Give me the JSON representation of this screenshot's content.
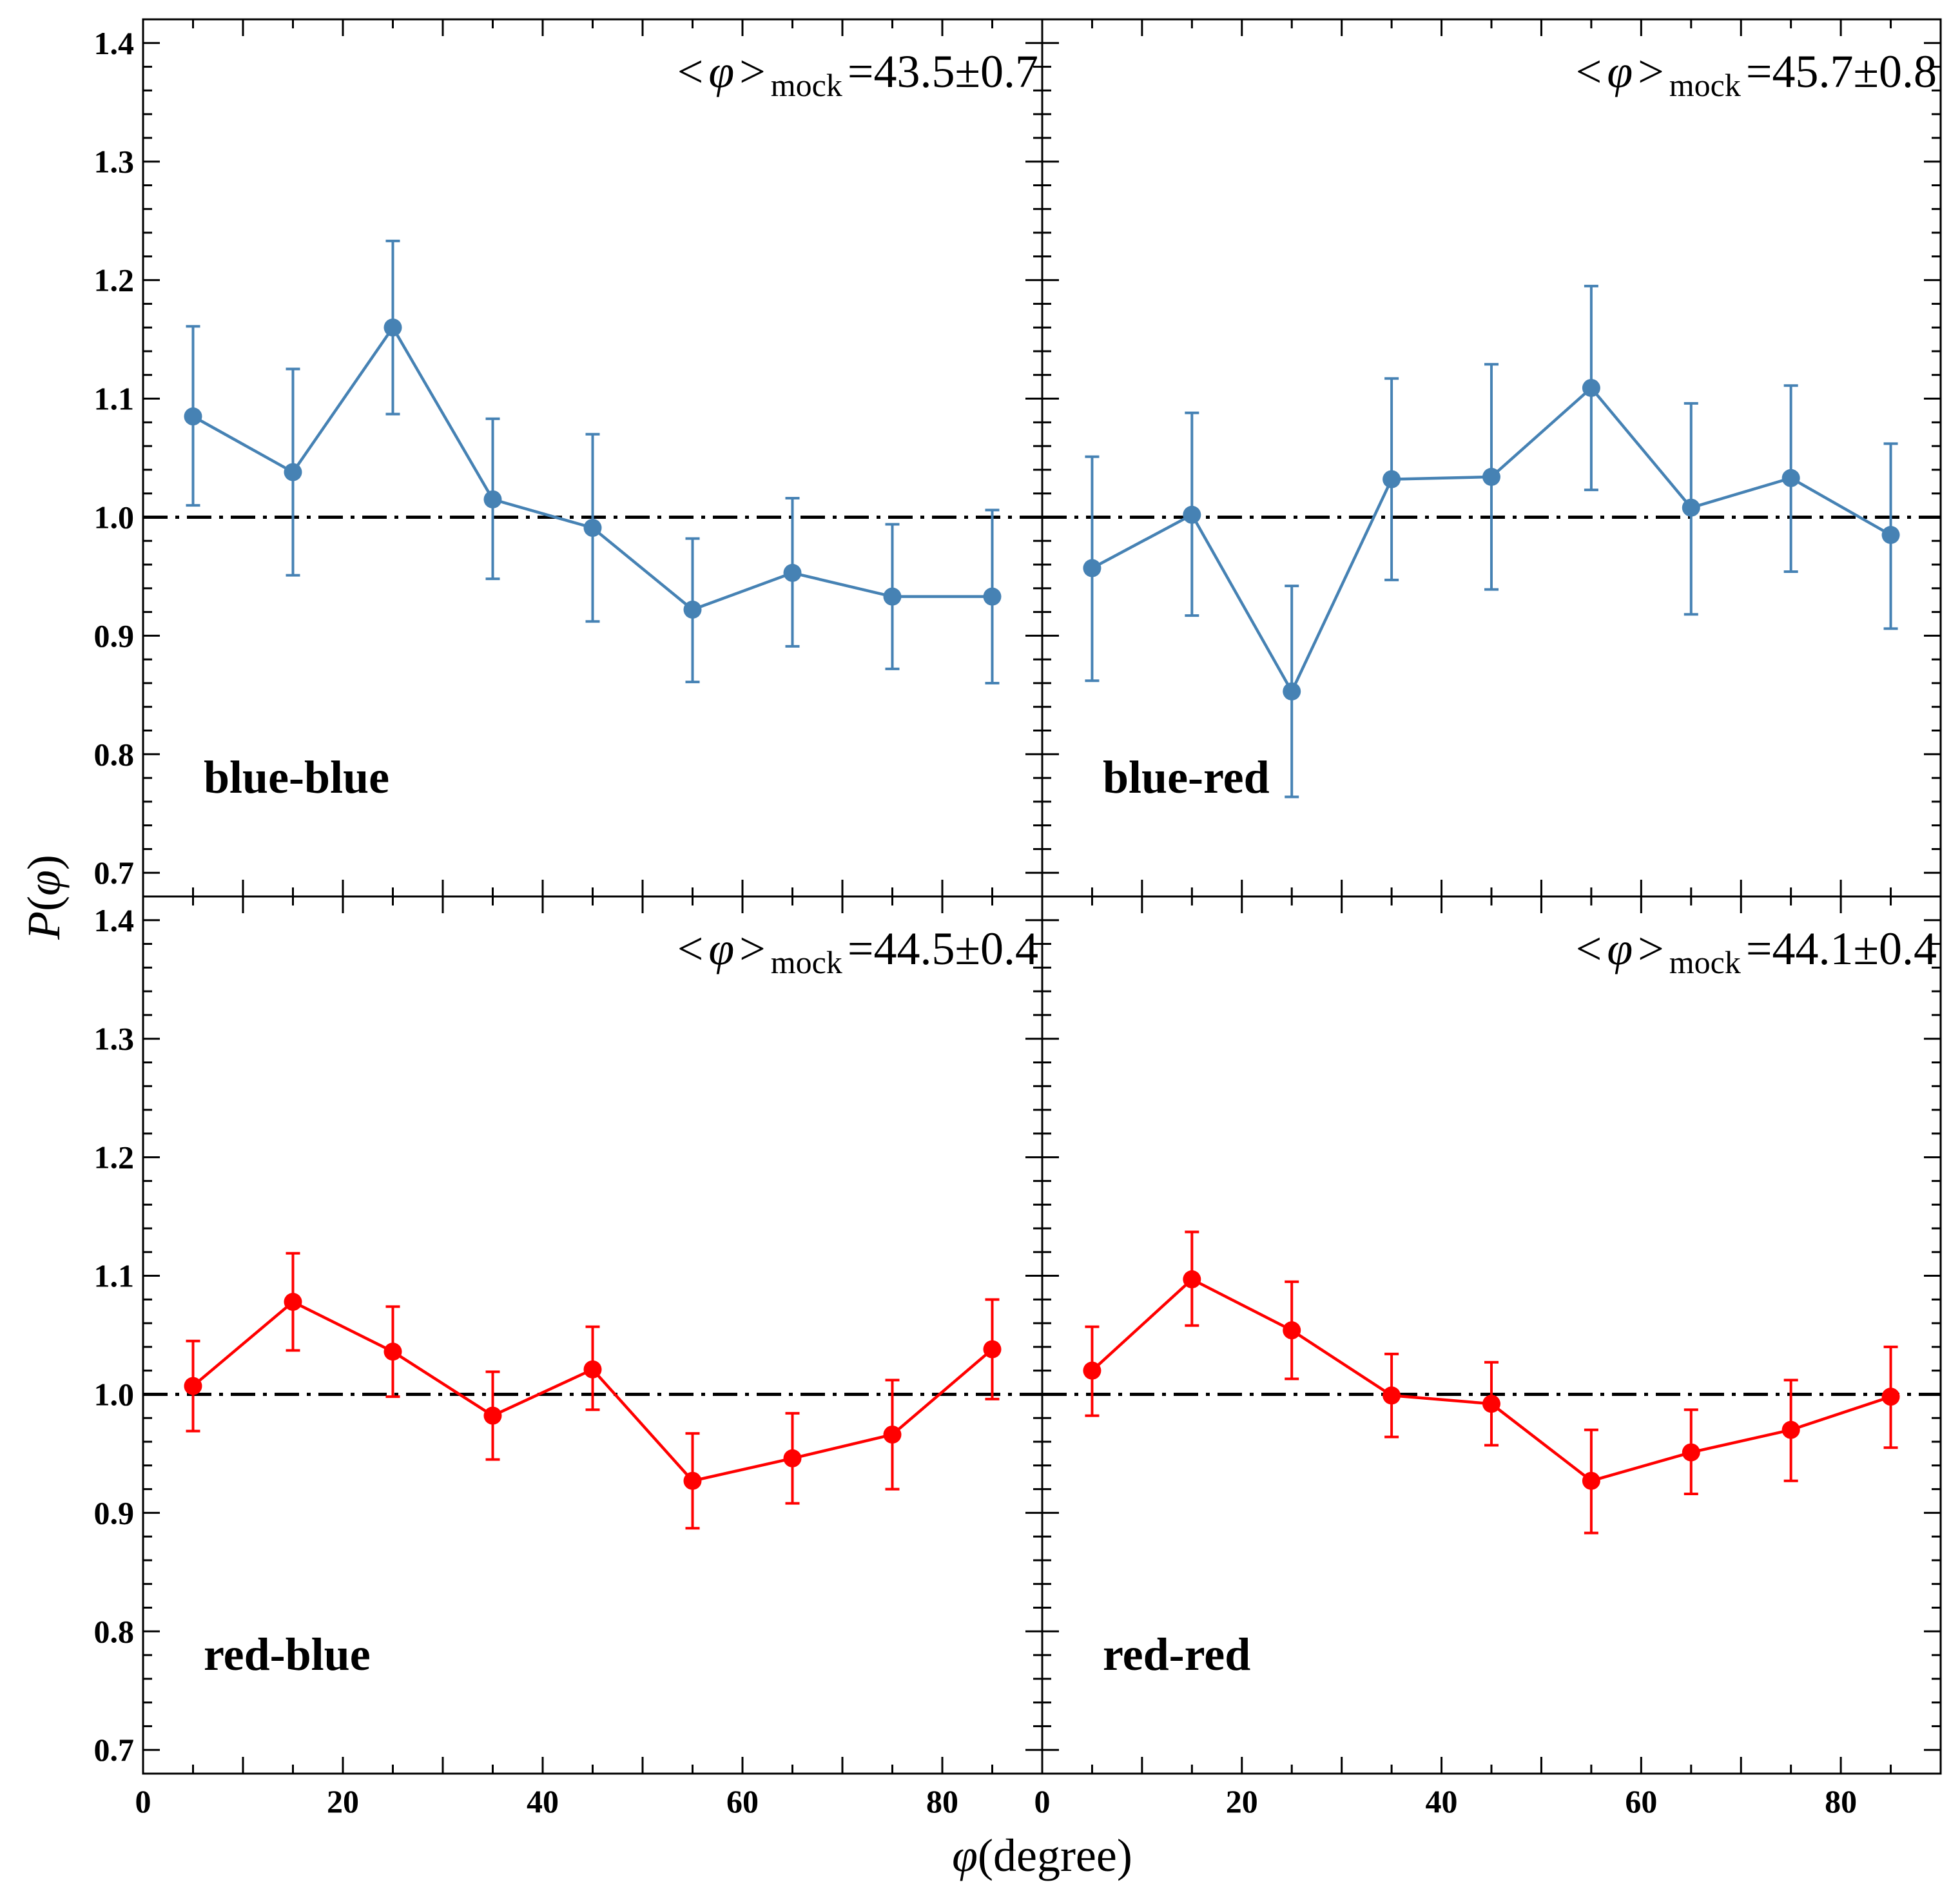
{
  "chart_data": {
    "type": "line",
    "layout": "2x2 grid, shared axes",
    "xlabel": {
      "symbol": "φ",
      "text": "(degree)"
    },
    "ylabel": {
      "symbol": "P",
      "open": "(",
      "arg": "φ",
      "close": ")"
    },
    "xlim": [
      0,
      90
    ],
    "ylim": [
      0.68,
      1.42
    ],
    "xticks": [
      0,
      20,
      40,
      60,
      80
    ],
    "yticks": [
      0.7,
      0.8,
      0.9,
      1.0,
      1.1,
      1.2,
      1.3,
      1.4
    ],
    "ytick_labels": [
      "0.7",
      "0.8",
      "0.9",
      "1.0",
      "1.1",
      "1.2",
      "1.3",
      "1.4"
    ],
    "reference_line": {
      "y": 1.0,
      "style": "dash-dot",
      "color": "#000000"
    },
    "x": [
      5,
      15,
      25,
      35,
      45,
      55,
      65,
      75,
      85
    ],
    "panels": [
      {
        "label": "blue-blue",
        "color": "#4682b4",
        "stat": {
          "lt": "<",
          "sym": "φ",
          "gt": ">",
          "sub": "mock",
          "eq": "=",
          "value": "43.5±0.7"
        },
        "values": [
          1.085,
          1.038,
          1.16,
          1.015,
          0.991,
          0.922,
          0.953,
          0.933,
          0.933
        ],
        "err_lo": [
          1.01,
          0.951,
          1.087,
          0.948,
          0.912,
          0.861,
          0.891,
          0.872,
          0.86
        ],
        "err_hi": [
          1.161,
          1.125,
          1.233,
          1.083,
          1.07,
          0.982,
          1.016,
          0.994,
          1.006
        ]
      },
      {
        "label": "blue-red",
        "color": "#4682b4",
        "stat": {
          "lt": "<",
          "sym": "φ",
          "gt": ">",
          "sub": "mock",
          "eq": "=",
          "value": "45.7±0.8"
        },
        "values": [
          0.957,
          1.002,
          0.853,
          1.032,
          1.034,
          1.109,
          1.008,
          1.033,
          0.985
        ],
        "err_lo": [
          0.862,
          0.917,
          0.764,
          0.947,
          0.939,
          1.023,
          0.918,
          0.954,
          0.906
        ],
        "err_hi": [
          1.051,
          1.088,
          0.942,
          1.117,
          1.129,
          1.195,
          1.096,
          1.111,
          1.062
        ]
      },
      {
        "label": "red-blue",
        "color": "#ff0000",
        "stat": {
          "lt": "<",
          "sym": "φ",
          "gt": ">",
          "sub": "mock",
          "eq": "=",
          "value": "44.5±0.4"
        },
        "values": [
          1.007,
          1.078,
          1.036,
          0.982,
          1.021,
          0.927,
          0.946,
          0.966,
          1.038
        ],
        "err_lo": [
          0.969,
          1.037,
          0.998,
          0.945,
          0.987,
          0.887,
          0.908,
          0.92,
          0.996
        ],
        "err_hi": [
          1.045,
          1.119,
          1.074,
          1.019,
          1.057,
          0.967,
          0.984,
          1.012,
          1.08
        ]
      },
      {
        "label": "red-red",
        "color": "#ff0000",
        "stat": {
          "lt": "<",
          "sym": "φ",
          "gt": ">",
          "sub": "mock",
          "eq": "=",
          "value": "44.1±0.4"
        },
        "values": [
          1.02,
          1.097,
          1.054,
          0.999,
          0.992,
          0.927,
          0.951,
          0.97,
          0.998
        ],
        "err_lo": [
          0.982,
          1.058,
          1.013,
          0.964,
          0.957,
          0.883,
          0.916,
          0.927,
          0.955
        ],
        "err_hi": [
          1.057,
          1.137,
          1.095,
          1.034,
          1.027,
          0.97,
          0.987,
          1.012,
          1.04
        ]
      }
    ]
  }
}
